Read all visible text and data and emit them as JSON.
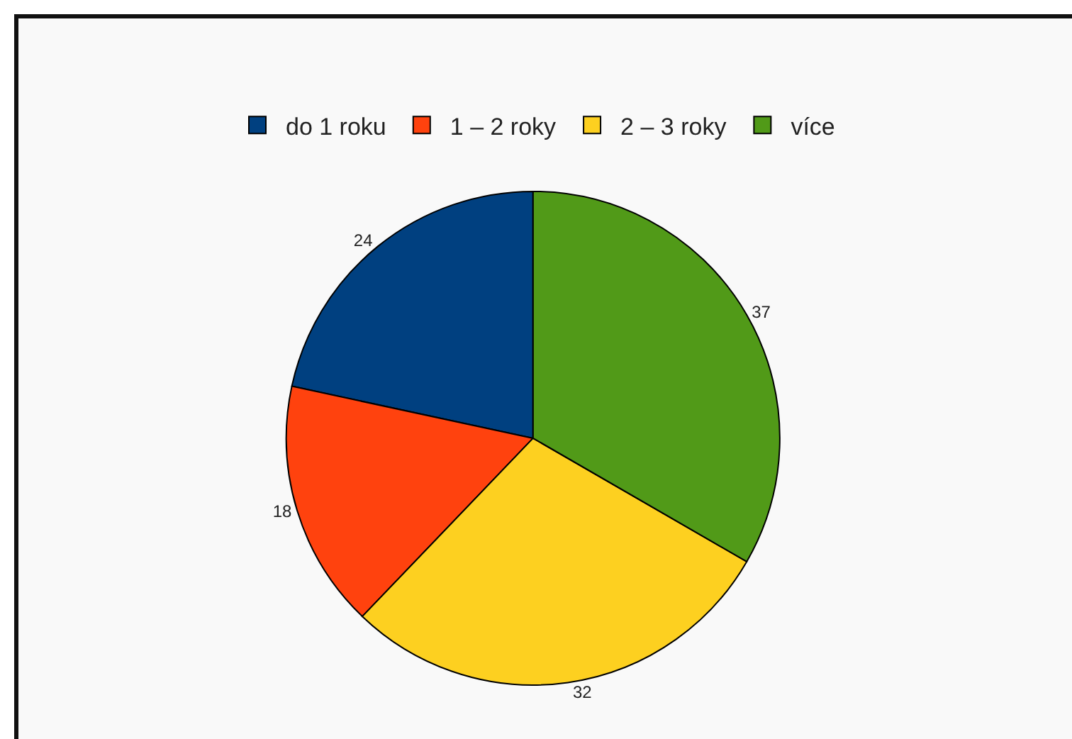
{
  "chart_data": {
    "type": "pie",
    "categories": [
      "do 1 roku",
      "1 – 2 roky",
      "2 – 3 roky",
      "více"
    ],
    "values": [
      24,
      18,
      32,
      37
    ],
    "colors": [
      "#004080",
      "#ff420e",
      "#fdd020",
      "#519a18"
    ],
    "data_labels": true,
    "legend": "top"
  }
}
